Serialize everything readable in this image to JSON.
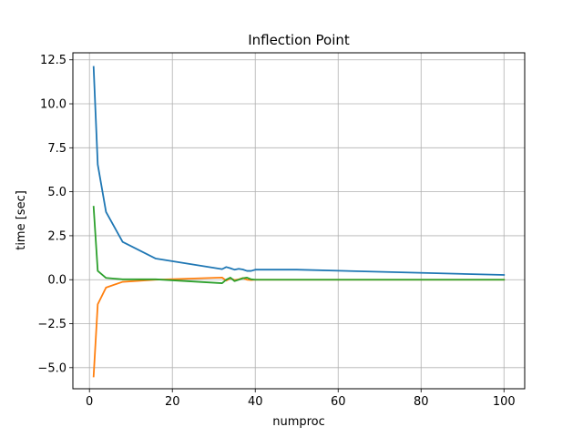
{
  "chart_data": {
    "type": "line",
    "title": "Inflection Point",
    "xlabel": "numproc",
    "ylabel": "time [sec]",
    "xlim": [
      -4,
      105
    ],
    "ylim": [
      -6.2,
      12.9
    ],
    "xticks": [
      0,
      20,
      40,
      60,
      80,
      100
    ],
    "xtick_labels": [
      "0",
      "20",
      "40",
      "60",
      "80",
      "100"
    ],
    "yticks": [
      -5.0,
      -2.5,
      0.0,
      2.5,
      5.0,
      7.5,
      10.0,
      12.5
    ],
    "ytick_labels": [
      "−5.0",
      "−2.5",
      "0.0",
      "2.5",
      "5.0",
      "7.5",
      "10.0",
      "12.5"
    ],
    "grid": true,
    "series": [
      {
        "color": "#1f77b4",
        "x": [
          1,
          2,
          4,
          8,
          16,
          32,
          33,
          34,
          35,
          36,
          37,
          38,
          39,
          40,
          50,
          100
        ],
        "y": [
          12.1,
          6.55,
          3.85,
          2.15,
          1.2,
          0.6,
          0.72,
          0.65,
          0.57,
          0.62,
          0.58,
          0.5,
          0.5,
          0.57,
          0.57,
          0.27
        ]
      },
      {
        "color": "#ff7f0e",
        "x": [
          1,
          2,
          4,
          8,
          16,
          32,
          33,
          34,
          35,
          36,
          37,
          38,
          39,
          40,
          50,
          100
        ],
        "y": [
          -5.5,
          -1.4,
          -0.45,
          -0.12,
          0.0,
          0.12,
          -0.05,
          0.08,
          -0.02,
          0.02,
          0.1,
          0.0,
          -0.02,
          0.0,
          0.0,
          0.0
        ]
      },
      {
        "color": "#2ca02c",
        "x": [
          1,
          2,
          4,
          8,
          16,
          32,
          33,
          34,
          35,
          36,
          37,
          38,
          39,
          40,
          50,
          100
        ],
        "y": [
          4.15,
          0.5,
          0.1,
          0.02,
          0.02,
          -0.2,
          0.0,
          0.12,
          -0.08,
          0.0,
          0.08,
          0.12,
          0.02,
          0.0,
          0.0,
          0.0
        ]
      }
    ]
  }
}
